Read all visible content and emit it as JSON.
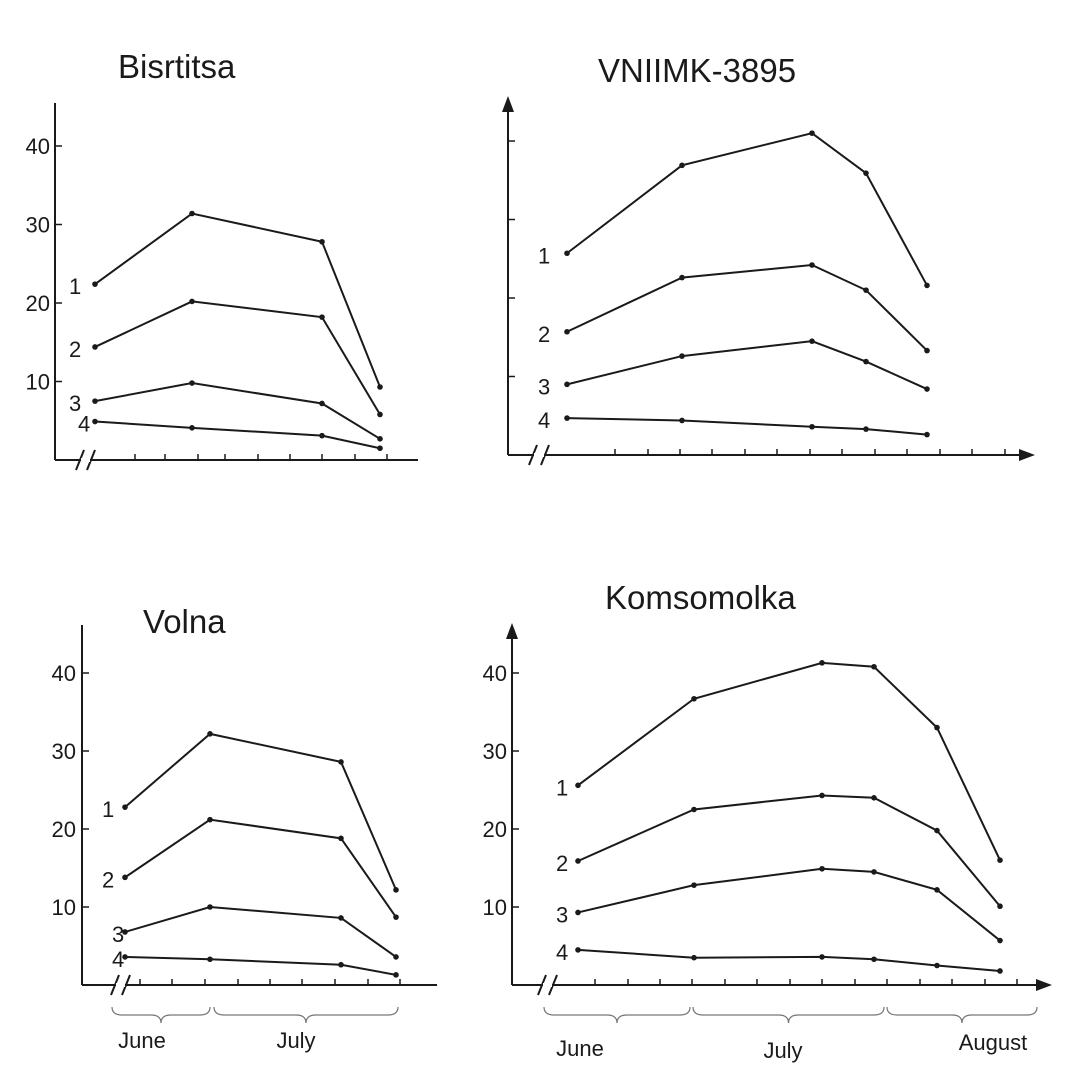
{
  "colors": {
    "line": "#1a1a1a",
    "axis": "#1a1a1a",
    "brace": "#777777",
    "background": "#ffffff"
  },
  "chart_data": [
    {
      "type": "line",
      "title": "Bisrtitsa",
      "ylim": [
        0,
        45
      ],
      "y_ticks": [
        10,
        20,
        30,
        40
      ],
      "y_tick_labels": [
        "10",
        "20",
        "30",
        "40"
      ],
      "x_axis_break": true,
      "series": [
        {
          "name": "1",
          "points": [
            [
              0.0,
              22.4
            ],
            [
              1.0,
              31.4
            ],
            [
              2.0,
              27.8
            ],
            [
              2.5,
              9.3
            ]
          ]
        },
        {
          "name": "2",
          "points": [
            [
              0.0,
              14.4
            ],
            [
              1.0,
              20.2
            ],
            [
              2.0,
              18.2
            ],
            [
              2.5,
              5.8
            ]
          ]
        },
        {
          "name": "3",
          "points": [
            [
              0.0,
              7.5
            ],
            [
              1.0,
              9.8
            ],
            [
              2.0,
              7.2
            ],
            [
              2.5,
              2.7
            ]
          ]
        },
        {
          "name": "4",
          "points": [
            [
              0.0,
              4.9
            ],
            [
              1.0,
              4.1
            ],
            [
              2.0,
              3.1
            ],
            [
              2.5,
              1.5
            ]
          ]
        }
      ]
    },
    {
      "type": "line",
      "title": "VNIIMK-3895",
      "ylim": [
        0,
        45
      ],
      "y_ticks": [
        10,
        20,
        30,
        40
      ],
      "y_tick_labels": [],
      "x_axis_break": true,
      "series": [
        {
          "name": "1",
          "points": [
            [
              0.0,
              25.7
            ],
            [
              1.0,
              36.9
            ],
            [
              2.0,
              41.0
            ],
            [
              2.5,
              35.9
            ],
            [
              3.0,
              21.6
            ]
          ]
        },
        {
          "name": "2",
          "points": [
            [
              0.0,
              15.7
            ],
            [
              1.0,
              22.6
            ],
            [
              2.0,
              24.2
            ],
            [
              2.5,
              21.0
            ],
            [
              3.0,
              13.3
            ]
          ]
        },
        {
          "name": "3",
          "points": [
            [
              0.0,
              9.0
            ],
            [
              1.0,
              12.6
            ],
            [
              2.0,
              14.5
            ],
            [
              2.5,
              11.9
            ],
            [
              3.0,
              8.4
            ]
          ]
        },
        {
          "name": "4",
          "points": [
            [
              0.0,
              4.7
            ],
            [
              1.0,
              4.4
            ],
            [
              2.0,
              3.6
            ],
            [
              2.5,
              3.3
            ],
            [
              3.0,
              2.6
            ]
          ]
        }
      ]
    },
    {
      "type": "line",
      "title": "Volna",
      "ylim": [
        0,
        45
      ],
      "y_ticks": [
        10,
        20,
        30,
        40
      ],
      "y_tick_labels": [
        "10",
        "20",
        "30",
        "40"
      ],
      "x_axis_break": true,
      "months": [
        "June",
        "July"
      ],
      "series": [
        {
          "name": "1",
          "points": [
            [
              0.0,
              22.8
            ],
            [
              1.0,
              32.2
            ],
            [
              2.0,
              28.6
            ],
            [
              2.5,
              12.2
            ]
          ]
        },
        {
          "name": "2",
          "points": [
            [
              0.0,
              13.8
            ],
            [
              1.0,
              21.2
            ],
            [
              2.0,
              18.8
            ],
            [
              2.5,
              8.7
            ]
          ]
        },
        {
          "name": "3",
          "points": [
            [
              0.0,
              6.8
            ],
            [
              1.0,
              10.0
            ],
            [
              2.0,
              8.6
            ],
            [
              2.5,
              3.6
            ]
          ]
        },
        {
          "name": "4",
          "points": [
            [
              0.0,
              3.6
            ],
            [
              1.0,
              3.3
            ],
            [
              2.0,
              2.6
            ],
            [
              2.5,
              1.3
            ]
          ]
        }
      ]
    },
    {
      "type": "line",
      "title": "Komsomolka",
      "ylim": [
        0,
        45
      ],
      "y_ticks": [
        10,
        20,
        30,
        40
      ],
      "y_tick_labels": [
        "10",
        "20",
        "30",
        "40"
      ],
      "x_axis_break": true,
      "months": [
        "June",
        "July",
        "August"
      ],
      "series": [
        {
          "name": "1",
          "points": [
            [
              0.0,
              25.6
            ],
            [
              1.0,
              36.7
            ],
            [
              2.0,
              41.3
            ],
            [
              2.5,
              40.8
            ],
            [
              3.0,
              33.0
            ],
            [
              3.5,
              16.0
            ]
          ]
        },
        {
          "name": "2",
          "points": [
            [
              0.0,
              15.9
            ],
            [
              1.0,
              22.5
            ],
            [
              2.0,
              24.3
            ],
            [
              2.5,
              24.0
            ],
            [
              3.0,
              19.8
            ],
            [
              3.5,
              10.1
            ]
          ]
        },
        {
          "name": "3",
          "points": [
            [
              0.0,
              9.3
            ],
            [
              1.0,
              12.8
            ],
            [
              2.0,
              14.9
            ],
            [
              2.5,
              14.5
            ],
            [
              3.0,
              12.2
            ],
            [
              3.5,
              5.7
            ]
          ]
        },
        {
          "name": "4",
          "points": [
            [
              0.0,
              4.5
            ],
            [
              1.0,
              3.5
            ],
            [
              2.0,
              3.6
            ],
            [
              2.5,
              3.3
            ],
            [
              3.0,
              2.5
            ],
            [
              3.5,
              1.8
            ]
          ]
        }
      ]
    }
  ]
}
